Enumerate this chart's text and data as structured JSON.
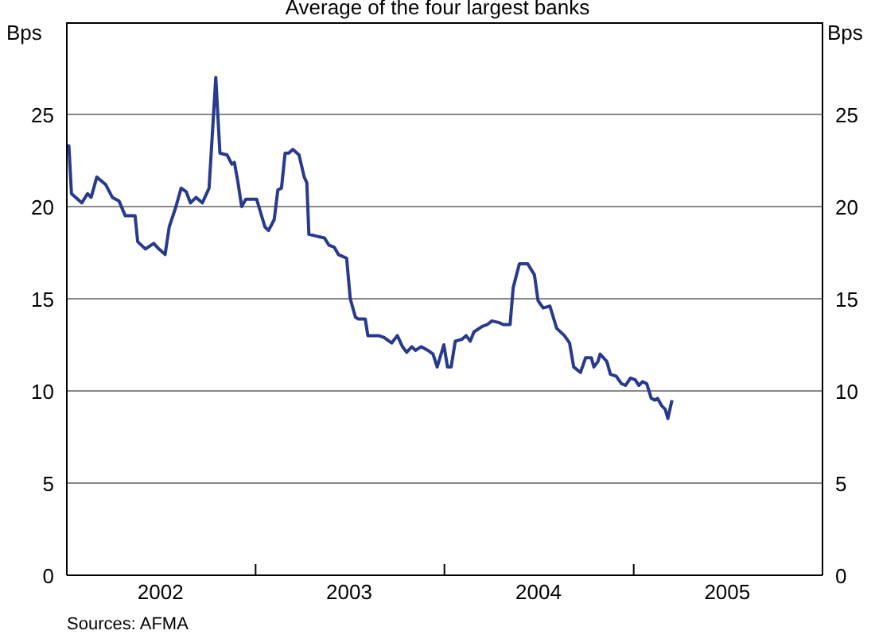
{
  "chart_data": {
    "type": "line",
    "title": "Average of the four largest banks",
    "ylabel": "Bps",
    "y2label": "Bps",
    "x": [
      "2002-01-01",
      "2002-01-05",
      "2002-01-10",
      "2002-01-30",
      "2002-02-10",
      "2002-02-17",
      "2002-02-28",
      "2002-03-17",
      "2002-03-30",
      "2002-04-12",
      "2002-04-24",
      "2002-05-13",
      "2002-05-18",
      "2002-06-02",
      "2002-06-18",
      "2002-06-28",
      "2002-07-10",
      "2002-07-18",
      "2002-07-31",
      "2002-08-10",
      "2002-08-20",
      "2002-08-28",
      "2002-09-08",
      "2002-09-20",
      "2002-10-03",
      "2002-10-16",
      "2002-10-24",
      "2002-11-07",
      "2002-11-16",
      "2002-11-21",
      "2002-11-28",
      "2002-12-05",
      "2002-12-13",
      "2003-01-03",
      "2003-01-19",
      "2003-01-26",
      "2003-02-06",
      "2003-02-13",
      "2003-02-20",
      "2003-02-27",
      "2003-03-06",
      "2003-03-14",
      "2003-03-26",
      "2003-04-05",
      "2003-04-10",
      "2003-04-14",
      "2003-04-28",
      "2003-05-14",
      "2003-05-23",
      "2003-06-02",
      "2003-06-10",
      "2003-06-26",
      "2003-07-03",
      "2003-07-13",
      "2003-07-19",
      "2003-08-01",
      "2003-08-06",
      "2003-08-27",
      "2003-09-06",
      "2003-09-21",
      "2003-10-02",
      "2003-10-12",
      "2003-10-20",
      "2003-10-30",
      "2003-11-06",
      "2003-11-17",
      "2003-11-30",
      "2003-12-10",
      "2003-12-18",
      "2003-12-31",
      "2004-01-07",
      "2004-01-14",
      "2004-01-22",
      "2004-02-04",
      "2004-02-12",
      "2004-02-20",
      "2004-02-27",
      "2004-03-14",
      "2004-03-24",
      "2004-04-02",
      "2004-04-16",
      "2004-04-24",
      "2004-05-07",
      "2004-05-13",
      "2004-05-25",
      "2004-06-10",
      "2004-06-23",
      "2004-06-30",
      "2004-07-10",
      "2004-07-23",
      "2004-08-05",
      "2004-08-20",
      "2004-08-30",
      "2004-09-07",
      "2004-09-20",
      "2004-09-30",
      "2004-10-11",
      "2004-10-16",
      "2004-10-24",
      "2004-10-28",
      "2004-11-10",
      "2004-11-17",
      "2004-11-28",
      "2004-12-08",
      "2004-12-16",
      "2004-12-26",
      "2005-01-04",
      "2005-01-11",
      "2005-01-18",
      "2005-01-26",
      "2005-02-04",
      "2005-02-11",
      "2005-02-16",
      "2005-02-24",
      "2005-03-03",
      "2005-03-08",
      "2005-03-16"
    ],
    "series": [
      {
        "color": "#283a8c",
        "values": [
          23.3,
          23.3,
          20.7,
          20.2,
          20.7,
          20.5,
          21.6,
          21.2,
          20.5,
          20.3,
          19.5,
          19.5,
          18.1,
          17.7,
          18.0,
          17.7,
          17.4,
          18.9,
          20.0,
          21.0,
          20.8,
          20.2,
          20.5,
          20.2,
          21.0,
          27.0,
          22.9,
          22.8,
          22.3,
          22.4,
          21.3,
          20.0,
          20.4,
          20.4,
          18.9,
          18.7,
          19.3,
          20.9,
          21.0,
          22.9,
          22.9,
          23.1,
          22.8,
          21.6,
          21.3,
          18.5,
          18.4,
          18.3,
          17.9,
          17.8,
          17.4,
          17.2,
          15.0,
          14.0,
          13.9,
          13.9,
          13.0,
          13.0,
          12.9,
          12.6,
          13.0,
          12.4,
          12.1,
          12.4,
          12.2,
          12.4,
          12.2,
          12.0,
          11.3,
          12.5,
          11.3,
          11.3,
          12.7,
          12.8,
          13.0,
          12.7,
          13.2,
          13.5,
          13.6,
          13.8,
          13.7,
          13.6,
          13.6,
          15.6,
          16.9,
          16.9,
          16.3,
          14.9,
          14.5,
          14.6,
          13.4,
          13.0,
          12.6,
          11.3,
          11.0,
          11.8,
          11.8,
          11.3,
          11.6,
          12.0,
          11.6,
          10.9,
          10.8,
          10.4,
          10.3,
          10.7,
          10.6,
          10.3,
          10.5,
          10.4,
          9.6,
          9.5,
          9.6,
          9.2,
          9.0,
          8.5,
          9.5
        ]
      }
    ],
    "xlim": [
      "2002-01-01",
      "2006-01-01"
    ],
    "xticks": [
      {
        "value": "2002-07-01",
        "label": "2002"
      },
      {
        "value": "2003-01-01",
        "label": null
      },
      {
        "value": "2003-07-01",
        "label": "2003"
      },
      {
        "value": "2004-01-01",
        "label": null
      },
      {
        "value": "2004-07-01",
        "label": "2004"
      },
      {
        "value": "2005-01-01",
        "label": null
      },
      {
        "value": "2005-07-01",
        "label": "2005"
      }
    ],
    "ylim": [
      0,
      30
    ],
    "yticks": [
      0,
      5,
      10,
      15,
      20,
      25
    ],
    "y2lim": [
      0,
      30
    ],
    "y2ticks": [
      0,
      5,
      10,
      15,
      20,
      25
    ],
    "grid": "y",
    "marker": "none",
    "line_style": "solid",
    "annotations": [
      "Sources: AFMA"
    ]
  }
}
